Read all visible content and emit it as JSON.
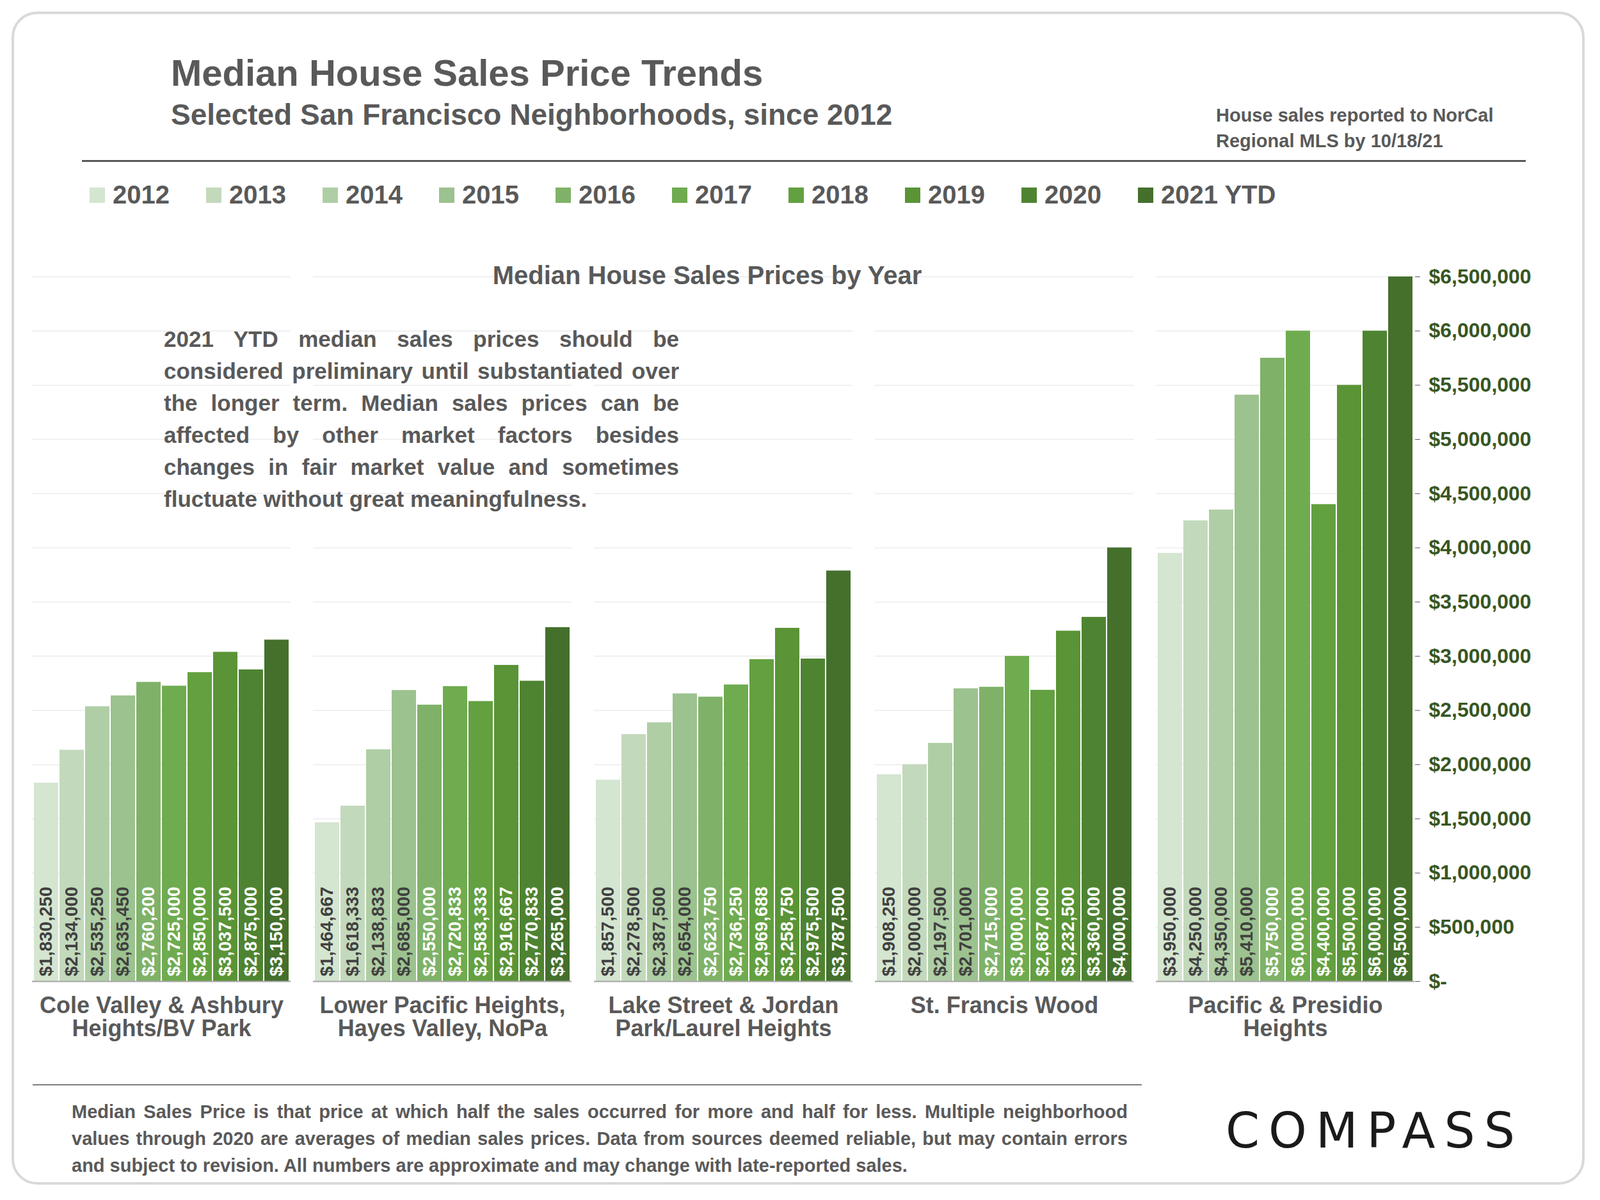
{
  "chart_data": {
    "type": "bar",
    "title": "Median House Sales Price Trends",
    "subtitle": "Selected San Francisco Neighborhoods, since 2012",
    "source_note": "House sales reported to NorCal Regional MLS by 10/18/21",
    "plot_title": "Median House Sales Prices by Year",
    "annotation": "2021 YTD median sales prices should be considered preliminary until substantiated over the longer term. Median sales prices can be affected by other market factors besides changes in fair market value and sometimes fluctuate without great meaningfulness.",
    "footnote": "Median Sales Price is that price at which half the sales occurred for more and half for less. Multiple neighborhood values through 2020 are averages of median sales prices. Data from sources deemed reliable, but may contain errors and subject to revision.  All numbers are approximate and may change with late-reported sales.",
    "logo": "COMPASS",
    "categories": [
      "Cole Valley & Ashbury Heights/BV Park",
      "Lower Pacific Heights, Hayes Valley, NoPa",
      "Lake Street & Jordan Park/Laurel Heights",
      "St. Francis Wood",
      "Pacific & Presidio Heights"
    ],
    "series": [
      {
        "name": "2012",
        "color": "#d4e5d0",
        "values": [
          1830250,
          1464667,
          1857500,
          1908250,
          3950000
        ],
        "value_labels": [
          "$1,830,250",
          "$1,464,667",
          "$1,857,500",
          "$1,908,250",
          "$3,950,000"
        ]
      },
      {
        "name": "2013",
        "color": "#c3d9bc",
        "values": [
          2134000,
          1618333,
          2278500,
          2000000,
          4250000
        ],
        "value_labels": [
          "$2,134,000",
          "$1,618,333",
          "$2,278,500",
          "$2,000,000",
          "$4,250,000"
        ]
      },
      {
        "name": "2014",
        "color": "#afcea5",
        "values": [
          2535250,
          2138833,
          2387500,
          2197500,
          4350000
        ],
        "value_labels": [
          "$2,535,250",
          "$2,138,833",
          "$2,387,500",
          "$2,197,500",
          "$4,350,000"
        ]
      },
      {
        "name": "2015",
        "color": "#9cc28f",
        "values": [
          2635450,
          2685000,
          2654000,
          2701000,
          5410000
        ],
        "value_labels": [
          "$2,635,450",
          "$2,685,000",
          "$2,654,000",
          "$2,701,000",
          "$5,410,000"
        ]
      },
      {
        "name": "2016",
        "color": "#7fb268",
        "values": [
          2760200,
          2550000,
          2623750,
          2715000,
          5750000
        ],
        "value_labels": [
          "$2,760,200",
          "$2,550,000",
          "$2,623,750",
          "$2,715,000",
          "$5,750,000"
        ]
      },
      {
        "name": "2017",
        "color": "#6fab4f",
        "values": [
          2725000,
          2720833,
          2736250,
          3000000,
          6000000
        ],
        "value_labels": [
          "$2,725,000",
          "$2,720,833",
          "$2,736,250",
          "$3,000,000",
          "$6,000,000"
        ]
      },
      {
        "name": "2018",
        "color": "#63a03f",
        "values": [
          2850000,
          2583333,
          2969688,
          2687000,
          4400000
        ],
        "value_labels": [
          "$2,850,000",
          "$2,583,333",
          "$2,969,688",
          "$2,687,000",
          "$4,400,000"
        ]
      },
      {
        "name": "2019",
        "color": "#5a9436",
        "values": [
          3037500,
          2916667,
          3258750,
          3232500,
          5500000
        ],
        "value_labels": [
          "$3,037,500",
          "$2,916,667",
          "$3,258,750",
          "$3,232,500",
          "$5,500,000"
        ]
      },
      {
        "name": "2020",
        "color": "#4e8431",
        "values": [
          2875000,
          2770833,
          2975500,
          3360000,
          6000000
        ],
        "value_labels": [
          "$2,875,000",
          "$2,770,833",
          "$2,975,500",
          "$3,360,000",
          "$6,000,000"
        ]
      },
      {
        "name": "2021 YTD",
        "color": "#44702c",
        "values": [
          3150000,
          3265000,
          3787500,
          4000000,
          6500000
        ],
        "value_labels": [
          "$3,150,000",
          "$3,265,000",
          "$3,787,500",
          "$4,000,000",
          "$6,500,000"
        ]
      }
    ],
    "ylim": [
      0,
      6500000
    ],
    "yticks": [
      {
        "value": 0,
        "label": "$-"
      },
      {
        "value": 500000,
        "label": "$500,000"
      },
      {
        "value": 1000000,
        "label": "$1,000,000"
      },
      {
        "value": 1500000,
        "label": "$1,500,000"
      },
      {
        "value": 2000000,
        "label": "$2,000,000"
      },
      {
        "value": 2500000,
        "label": "$2,500,000"
      },
      {
        "value": 3000000,
        "label": "$3,000,000"
      },
      {
        "value": 3500000,
        "label": "$3,500,000"
      },
      {
        "value": 4000000,
        "label": "$4,000,000"
      },
      {
        "value": 4500000,
        "label": "$4,500,000"
      },
      {
        "value": 5000000,
        "label": "$5,000,000"
      },
      {
        "value": 5500000,
        "label": "$5,500,000"
      },
      {
        "value": 6000000,
        "label": "$6,000,000"
      },
      {
        "value": 6500000,
        "label": "$6,500,000"
      }
    ],
    "grid": true,
    "data_labels": true,
    "legend": "top"
  }
}
